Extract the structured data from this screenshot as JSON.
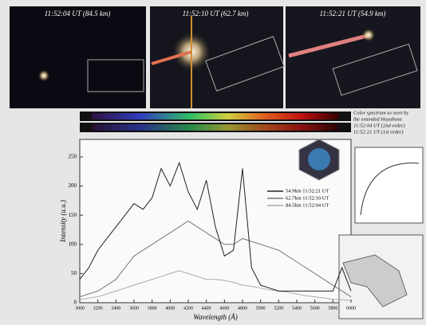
{
  "chart_data": {
    "type": "line",
    "photo_labels": [
      "11:52:04 UT (84.5 km)",
      "11:52:10 UT (62.7 km)",
      "11:52:21 UT (54.9 km)"
    ],
    "strip_caption": [
      "Color spectrum as seen by",
      "the extended Hayabusa",
      "11:52:04 UT (2nd order)",
      "11:52:21 UT (1st order)"
    ],
    "x_label": "Wavelength (Å)",
    "y_label": "Intensity (a.u.)",
    "x": [
      3000,
      3100,
      3200,
      3300,
      3400,
      3500,
      3600,
      3700,
      3800,
      3900,
      4000,
      4100,
      4200,
      4300,
      4400,
      4500,
      4600,
      4700,
      4800,
      4900,
      5000,
      5100,
      5200,
      5300,
      5400,
      5500,
      5600,
      5700,
      5800,
      5900,
      6000
    ],
    "series": [
      {
        "name": "54.9km 11:52:21 UT",
        "color": "#222222",
        "values": [
          40,
          60,
          90,
          110,
          130,
          150,
          170,
          160,
          180,
          230,
          200,
          240,
          190,
          160,
          210,
          130,
          80,
          90,
          230,
          60,
          30,
          25,
          20,
          20,
          20,
          20,
          20,
          20,
          20,
          60,
          20
        ]
      },
      {
        "name": "62.7km 11:52:10 UT",
        "color": "#777777",
        "values": [
          10,
          15,
          20,
          30,
          40,
          60,
          80,
          90,
          100,
          110,
          120,
          130,
          140,
          130,
          120,
          110,
          100,
          100,
          110,
          105,
          100,
          95,
          90,
          80,
          70,
          60,
          50,
          40,
          30,
          20,
          10
        ]
      },
      {
        "name": "84.5km 11:52:04 UT",
        "color": "#aaaaaa",
        "values": [
          5,
          8,
          10,
          15,
          20,
          25,
          30,
          35,
          40,
          45,
          50,
          55,
          50,
          45,
          40,
          40,
          38,
          35,
          30,
          28,
          25,
          22,
          20,
          18,
          15,
          12,
          10,
          8,
          6,
          5,
          4
        ]
      }
    ],
    "xlim": [
      3000,
      6000
    ],
    "xticks": [
      3000,
      3200,
      3400,
      3600,
      3800,
      4000,
      4200,
      4400,
      4600,
      4800,
      5000,
      5200,
      5400,
      5600,
      5800,
      6000
    ],
    "ylim": [
      0,
      280
    ],
    "yticks": [
      0,
      50,
      100,
      150,
      200,
      250
    ]
  }
}
